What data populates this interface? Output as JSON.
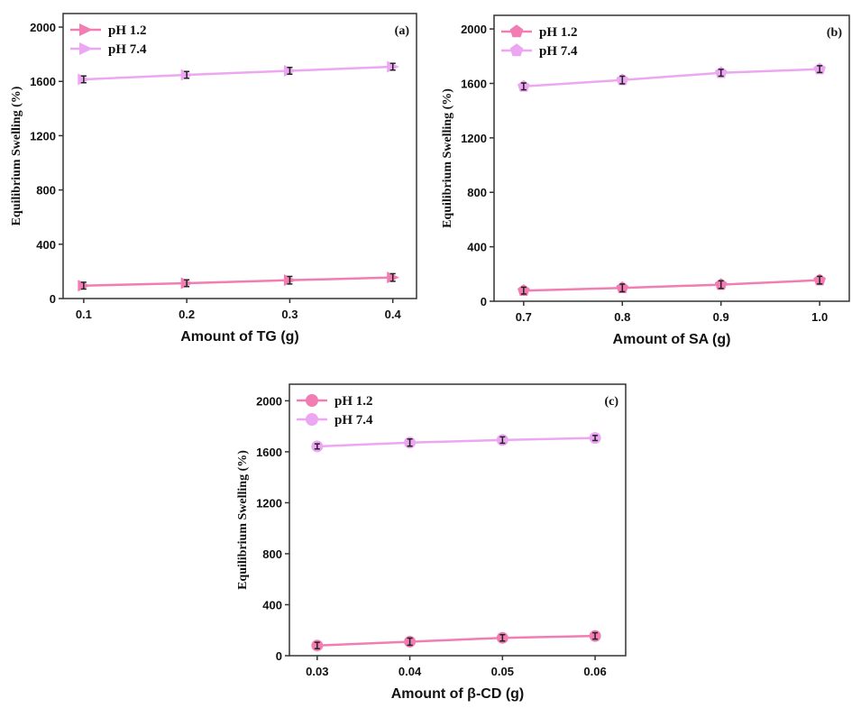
{
  "chart_data": [
    {
      "type": "line",
      "panel_label": "(a)",
      "xlabel": "Amount of TG (g)",
      "ylabel": "Equilibrium Swelling (%)",
      "x": [
        0.1,
        0.2,
        0.3,
        0.4
      ],
      "x_tick_labels": [
        "0.1",
        "0.2",
        "0.3",
        "0.4"
      ],
      "xlim": [
        0.08,
        0.423
      ],
      "ylim": [
        0,
        2100
      ],
      "y_ticks": [
        0,
        400,
        800,
        1200,
        1600,
        2000
      ],
      "y_tick_labels": [
        "0",
        "400",
        "800",
        "1200",
        "1600",
        "2000"
      ],
      "marker": "triangle-right",
      "legend_position": "top-left",
      "grid": false,
      "series": [
        {
          "name": "pH 1.2",
          "color": "#f27db3",
          "values": [
            95,
            113,
            135,
            155
          ],
          "errors": [
            25,
            25,
            28,
            28
          ]
        },
        {
          "name": "pH 7.4",
          "color": "#eda6f2",
          "values": [
            1615,
            1648,
            1678,
            1708
          ],
          "errors": [
            25,
            25,
            25,
            25
          ]
        }
      ]
    },
    {
      "type": "line",
      "panel_label": "(b)",
      "xlabel": "Amount of SA (g)",
      "ylabel": "Equilibrium Swelling (%)",
      "x": [
        0.7,
        0.8,
        0.9,
        1.0
      ],
      "x_tick_labels": [
        "0.7",
        "0.8",
        "0.9",
        "1.0"
      ],
      "xlim": [
        0.67,
        1.03
      ],
      "ylim": [
        0,
        2100
      ],
      "y_ticks": [
        0,
        400,
        800,
        1200,
        1600,
        2000
      ],
      "y_tick_labels": [
        "0",
        "400",
        "800",
        "1200",
        "1600",
        "2000"
      ],
      "marker": "pentagon",
      "legend_position": "top-left",
      "grid": false,
      "series": [
        {
          "name": "pH 1.2",
          "color": "#f27db3",
          "values": [
            78,
            98,
            122,
            155
          ],
          "errors": [
            25,
            28,
            28,
            28
          ]
        },
        {
          "name": "pH 7.4",
          "color": "#eda6f2",
          "values": [
            1578,
            1625,
            1678,
            1705
          ],
          "errors": [
            25,
            28,
            25,
            25
          ]
        }
      ]
    },
    {
      "type": "line",
      "panel_label": "(c)",
      "xlabel": "Amount of β-CD (g)",
      "ylabel": "Equilibrium Swelling (%)",
      "x": [
        0.03,
        0.04,
        0.05,
        0.06
      ],
      "x_tick_labels": [
        "0.03",
        "0.04",
        "0.05",
        "0.06"
      ],
      "xlim": [
        0.027,
        0.0633
      ],
      "ylim": [
        0,
        2130
      ],
      "y_ticks": [
        0,
        400,
        800,
        1200,
        1600,
        2000
      ],
      "y_tick_labels": [
        "0",
        "400",
        "800",
        "1200",
        "1600",
        "2000"
      ],
      "marker": "circle",
      "legend_position": "top-left",
      "grid": false,
      "series": [
        {
          "name": "pH 1.2",
          "color": "#f27db3",
          "values": [
            80,
            110,
            140,
            155
          ],
          "errors": [
            25,
            28,
            25,
            25
          ]
        },
        {
          "name": "pH 7.4",
          "color": "#eda6f2",
          "values": [
            1642,
            1672,
            1692,
            1708
          ],
          "errors": [
            20,
            28,
            25,
            20
          ]
        }
      ]
    }
  ]
}
